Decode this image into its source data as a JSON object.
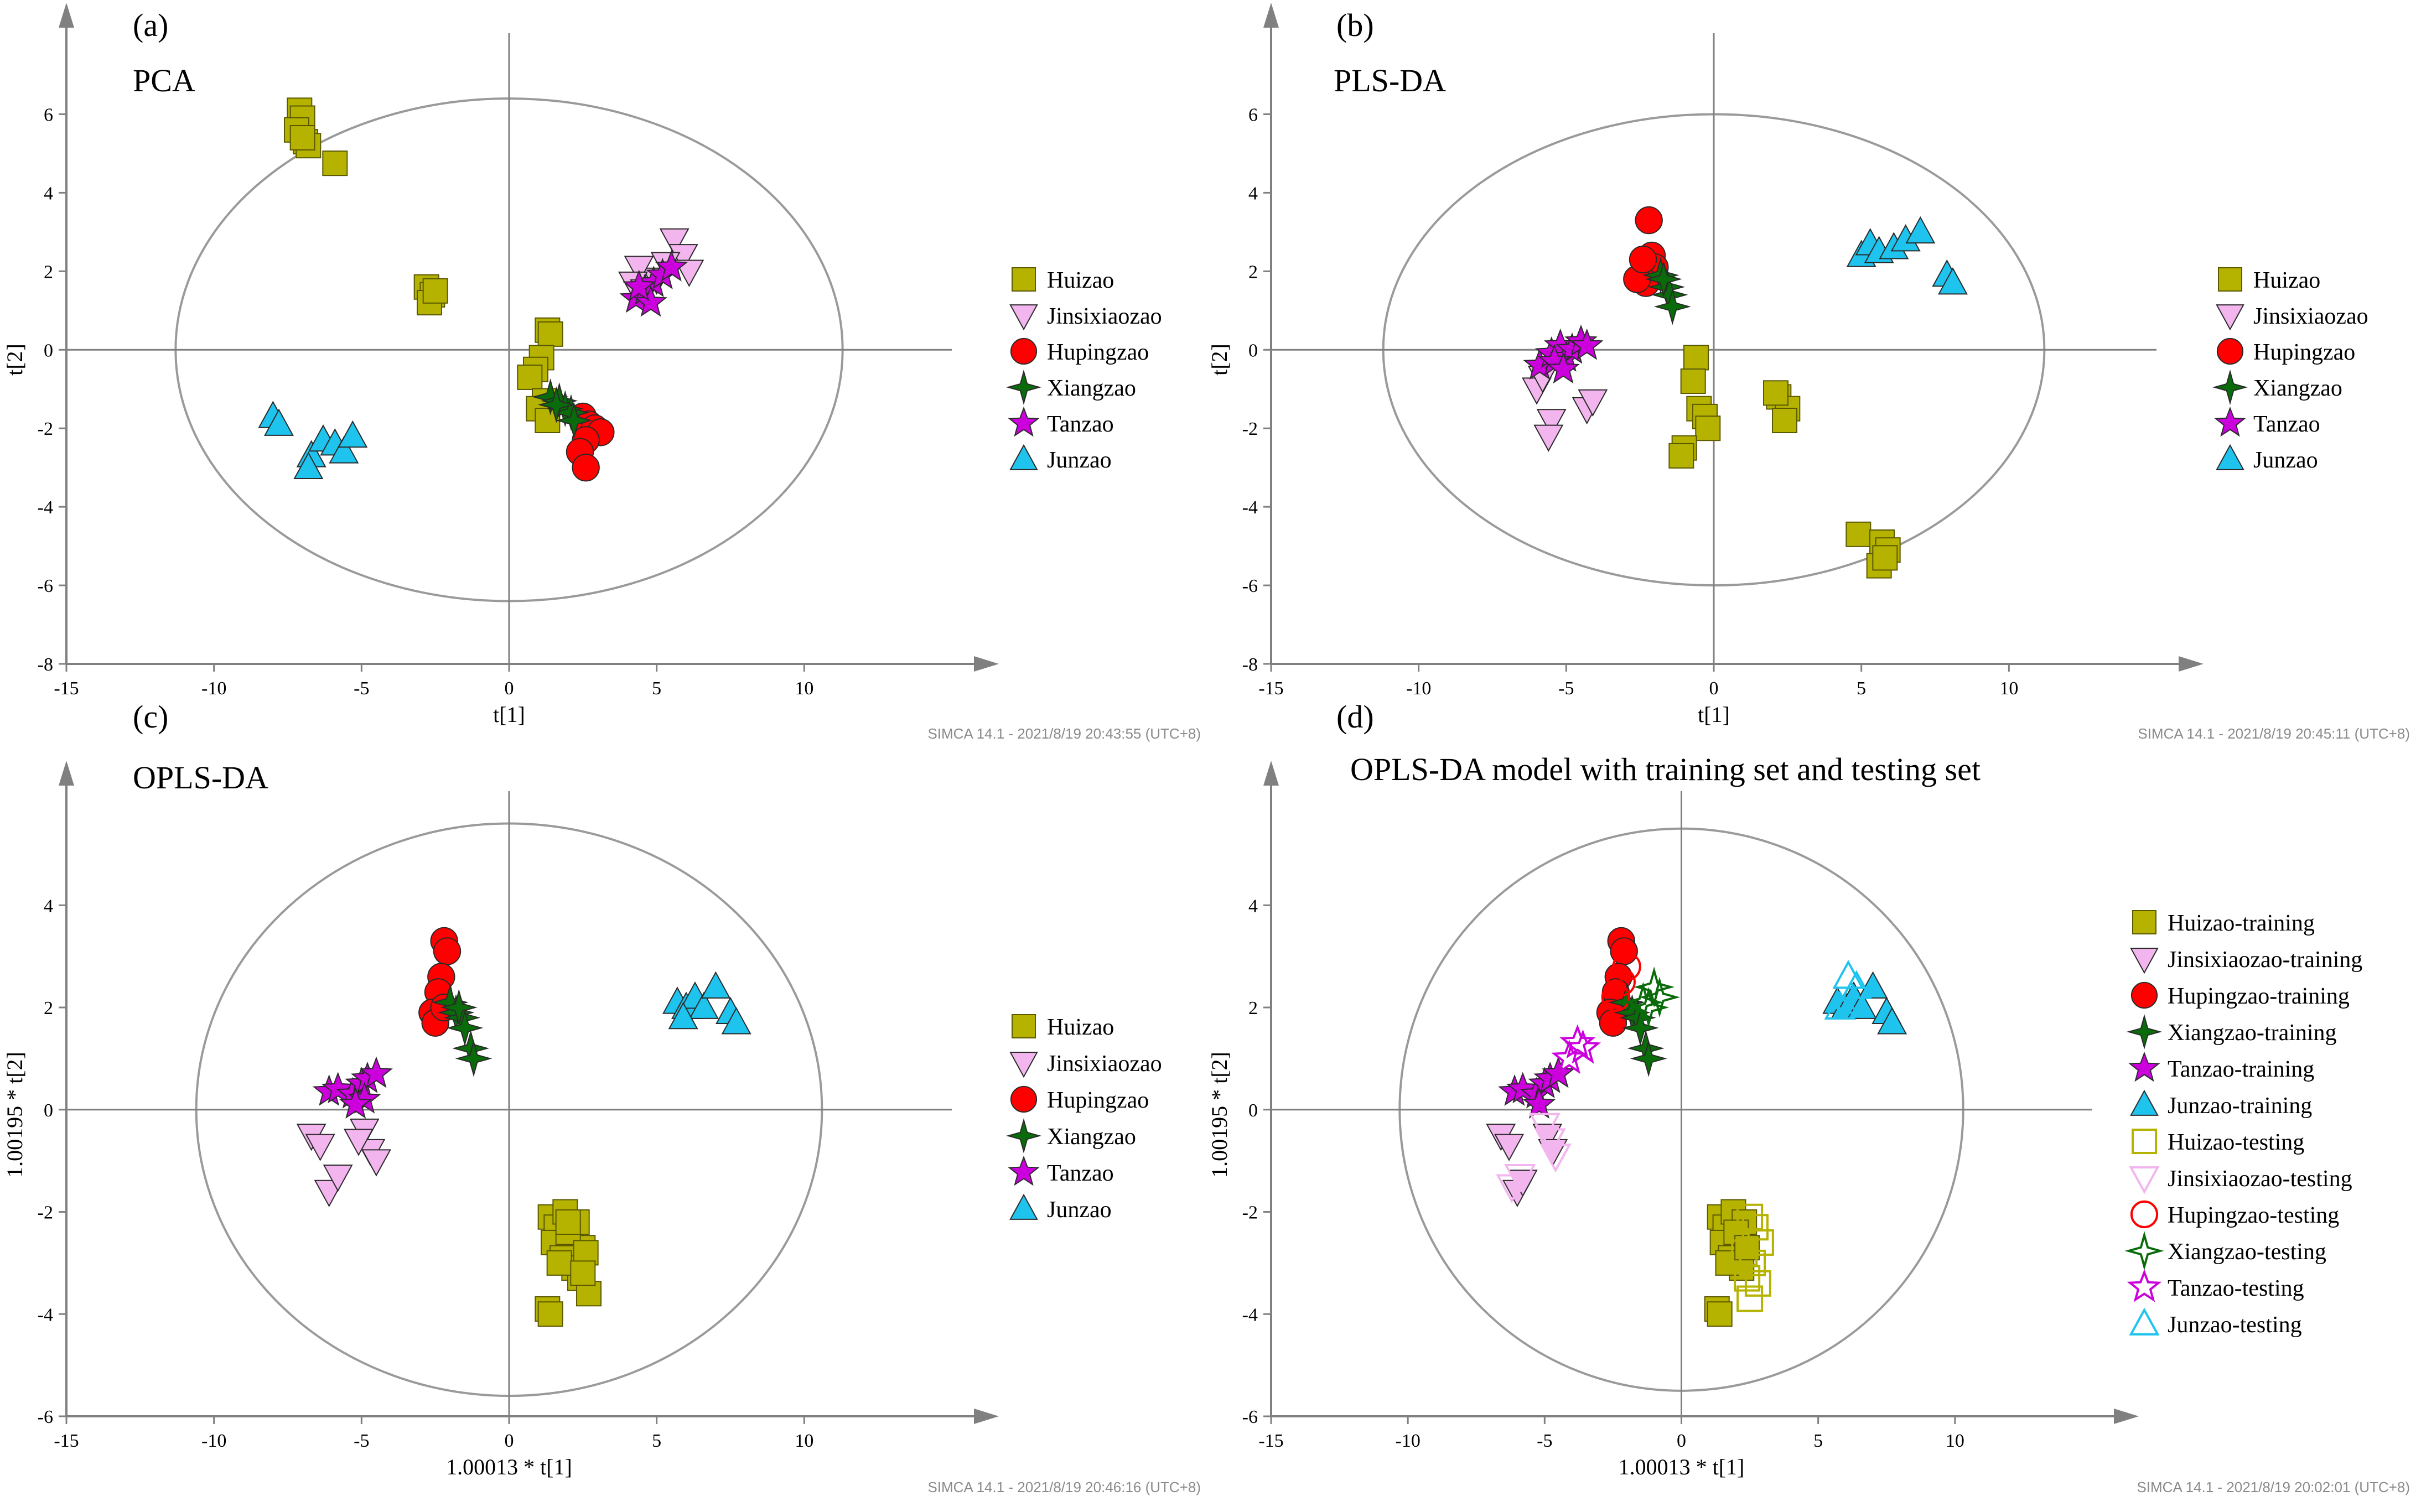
{
  "colors": {
    "Huizao": "#b5b300",
    "Jinsixiaozao": "#f3b5ee",
    "Hupingzao": "#ff0000",
    "Xiangzao": "#0a6b0a",
    "Tanzao": "#cc00dd",
    "Junzao": "#1ec3ee",
    "axis": "#808080",
    "ellipse": "#9a9a9a"
  },
  "chart_data": [
    {
      "type": "scatter",
      "panel_label": "(a)",
      "title": "PCA",
      "xlabel": "t[1]",
      "ylabel": "t[2]",
      "xlim": [
        -15,
        15
      ],
      "ylim": [
        -8,
        7.5
      ],
      "xticks": [
        -15,
        -10,
        -5,
        0,
        5,
        10
      ],
      "yticks": [
        -8,
        -6,
        -4,
        -2,
        0,
        2,
        4,
        6
      ],
      "ellipse": {
        "rx": 11.3,
        "ry": 6.4
      },
      "legend": [
        "Huizao",
        "Jinsixiaozao",
        "Hupingzao",
        "Xiangzao",
        "Tanzao",
        "Junzao"
      ],
      "timestamp": "SIMCA 14.1 - 2021/8/19 20:43:55 (UTC+8)",
      "series": [
        {
          "name": "Huizao",
          "shape": "square",
          "x": [
            -7.1,
            -7.0,
            -7.2,
            -6.9,
            -6.8,
            -7.0,
            -5.9,
            -2.8,
            -2.6,
            -2.7,
            -2.5,
            1.3,
            1.4,
            1.1,
            0.9,
            0.7,
            1.2,
            1.0,
            1.3
          ],
          "y": [
            6.1,
            5.9,
            5.6,
            5.3,
            5.2,
            5.4,
            4.75,
            1.6,
            1.4,
            1.2,
            1.5,
            0.5,
            0.4,
            -0.2,
            -0.5,
            -0.7,
            -1.3,
            -1.5,
            -1.8
          ]
        },
        {
          "name": "Jinsixiaozao",
          "shape": "triangle-down",
          "x": [
            5.6,
            5.9,
            6.1,
            5.0,
            4.4,
            4.2,
            4.6,
            5.3
          ],
          "y": [
            2.8,
            2.4,
            2.0,
            1.8,
            2.1,
            1.7,
            1.5,
            2.2
          ]
        },
        {
          "name": "Hupingzao",
          "shape": "circle",
          "x": [
            2.5,
            2.7,
            2.9,
            3.1,
            2.6,
            2.4,
            2.6
          ],
          "y": [
            -1.7,
            -1.9,
            -2.0,
            -2.1,
            -2.3,
            -2.6,
            -3.0
          ]
        },
        {
          "name": "Xiangzao",
          "shape": "star4",
          "x": [
            1.4,
            1.7,
            1.9,
            2.1,
            2.2,
            1.6
          ],
          "y": [
            -1.2,
            -1.3,
            -1.5,
            -1.6,
            -1.8,
            -1.4
          ]
        },
        {
          "name": "Tanzao",
          "shape": "star5",
          "x": [
            4.3,
            4.6,
            4.9,
            5.2,
            5.5,
            4.8,
            4.4
          ],
          "y": [
            1.3,
            1.5,
            1.7,
            1.9,
            2.1,
            1.2,
            1.6
          ]
        },
        {
          "name": "Junzao",
          "shape": "triangle-up",
          "x": [
            -8.0,
            -7.8,
            -6.7,
            -6.3,
            -5.9,
            -5.6,
            -5.3,
            -6.8
          ],
          "y": [
            -1.7,
            -1.9,
            -2.7,
            -2.3,
            -2.4,
            -2.6,
            -2.2,
            -3.0
          ]
        }
      ]
    },
    {
      "type": "scatter",
      "panel_label": "(b)",
      "title": "PLS-DA",
      "xlabel": "t[1]",
      "ylabel": "t[2]",
      "xlim": [
        -15,
        15
      ],
      "ylim": [
        -8,
        7.5
      ],
      "xticks": [
        -15,
        -10,
        -5,
        0,
        5,
        10
      ],
      "yticks": [
        -8,
        -6,
        -4,
        -2,
        0,
        2,
        4,
        6
      ],
      "ellipse": {
        "rx": 11.2,
        "ry": 6.0
      },
      "legend": [
        "Huizao",
        "Jinsixiaozao",
        "Hupingzao",
        "Xiangzao",
        "Tanzao",
        "Junzao"
      ],
      "timestamp": "SIMCA 14.1 - 2021/8/19 20:45:11 (UTC+8)",
      "series": [
        {
          "name": "Huizao",
          "shape": "square",
          "x": [
            -0.6,
            -0.7,
            -0.5,
            -0.3,
            -0.2,
            -1.0,
            -1.1,
            2.2,
            2.5,
            2.4,
            2.1,
            4.9,
            5.7,
            5.9,
            5.6,
            5.8
          ],
          "y": [
            -0.2,
            -0.8,
            -1.5,
            -1.7,
            -2.0,
            -2.5,
            -2.7,
            -1.2,
            -1.5,
            -1.8,
            -1.1,
            -4.7,
            -4.9,
            -5.1,
            -5.5,
            -5.3
          ]
        },
        {
          "name": "Jinsixiaozao",
          "shape": "triangle-down",
          "x": [
            -6.0,
            -5.8,
            -5.5,
            -5.6,
            -4.3,
            -4.1
          ],
          "y": [
            -1.0,
            -0.7,
            -1.8,
            -2.2,
            -1.5,
            -1.3
          ]
        },
        {
          "name": "Hupingzao",
          "shape": "circle",
          "x": [
            -2.2,
            -2.1,
            -2.0,
            -2.3,
            -2.6,
            -2.4
          ],
          "y": [
            3.3,
            2.4,
            2.1,
            1.7,
            1.8,
            2.3
          ]
        },
        {
          "name": "Xiangzao",
          "shape": "star4",
          "x": [
            -1.8,
            -1.6,
            -1.5,
            -1.4,
            -1.7
          ],
          "y": [
            1.9,
            1.6,
            1.4,
            1.1,
            1.8
          ]
        },
        {
          "name": "Tanzao",
          "shape": "star5",
          "x": [
            -5.9,
            -5.5,
            -5.2,
            -5.0,
            -4.8,
            -4.5,
            -4.3,
            -5.4,
            -5.1
          ],
          "y": [
            -0.4,
            -0.1,
            0.1,
            -0.2,
            0.0,
            0.2,
            0.1,
            -0.3,
            -0.5
          ]
        },
        {
          "name": "Junzao",
          "shape": "triangle-up",
          "x": [
            5.0,
            5.3,
            5.6,
            6.1,
            6.5,
            7.0,
            7.9,
            8.1
          ],
          "y": [
            2.4,
            2.7,
            2.5,
            2.6,
            2.8,
            3.0,
            1.9,
            1.7
          ]
        }
      ]
    },
    {
      "type": "scatter",
      "panel_label": "(c)",
      "title": "OPLS-DA",
      "xlabel": "1.00013 * t[1]",
      "ylabel": "1.00195 * t[2]",
      "xlim": [
        -15,
        15
      ],
      "ylim": [
        -6,
        5.8
      ],
      "xticks": [
        -15,
        -10,
        -5,
        0,
        5,
        10
      ],
      "yticks": [
        -6,
        -4,
        -2,
        0,
        2,
        4
      ],
      "ellipse": {
        "rx": 10.6,
        "ry": 5.6
      },
      "legend": [
        "Huizao",
        "Jinsixiaozao",
        "Hupingzao",
        "Xiangzao",
        "Tanzao",
        "Junzao"
      ],
      "timestamp": "SIMCA 14.1 - 2021/8/19 20:46:16 (UTC+8)",
      "series": [
        {
          "name": "Huizao",
          "shape": "square",
          "x": [
            1.4,
            1.6,
            1.9,
            2.1,
            2.3,
            2.5,
            1.5,
            1.8,
            2.0,
            2.2,
            2.4,
            2.6,
            1.7,
            2.7,
            1.3,
            1.4,
            2.0,
            2.5
          ],
          "y": [
            -2.1,
            -2.3,
            -2.0,
            -2.5,
            -2.2,
            -2.7,
            -2.6,
            -2.9,
            -2.4,
            -3.1,
            -3.3,
            -2.8,
            -3.0,
            -3.6,
            -3.9,
            -4.0,
            -2.2,
            -3.2
          ]
        },
        {
          "name": "Jinsixiaozao",
          "shape": "triangle-down",
          "x": [
            -6.7,
            -6.4,
            -6.1,
            -5.8,
            -4.9,
            -4.7,
            -4.5,
            -5.1
          ],
          "y": [
            -0.5,
            -0.7,
            -1.6,
            -1.3,
            -0.4,
            -0.8,
            -1.0,
            -0.6
          ]
        },
        {
          "name": "Hupingzao",
          "shape": "circle",
          "x": [
            -2.2,
            -2.1,
            -2.3,
            -2.4,
            -2.6,
            -2.5,
            -2.2
          ],
          "y": [
            3.3,
            3.1,
            2.6,
            2.3,
            1.9,
            1.7,
            2.0
          ]
        },
        {
          "name": "Xiangzao",
          "shape": "star4",
          "x": [
            -2.0,
            -1.8,
            -1.6,
            -1.5,
            -1.3,
            -1.2,
            -1.7
          ],
          "y": [
            2.1,
            1.9,
            1.8,
            1.6,
            1.2,
            1.0,
            2.0
          ]
        },
        {
          "name": "Tanzao",
          "shape": "star5",
          "x": [
            -6.1,
            -5.8,
            -5.3,
            -5.0,
            -4.8,
            -4.5,
            -4.9,
            -5.2
          ],
          "y": [
            0.35,
            0.4,
            0.3,
            0.5,
            0.6,
            0.7,
            0.2,
            0.1
          ]
        },
        {
          "name": "Junzao",
          "shape": "triangle-up",
          "x": [
            5.7,
            6.0,
            6.3,
            6.6,
            7.0,
            7.5,
            7.7,
            5.9
          ],
          "y": [
            2.1,
            2.0,
            2.2,
            2.0,
            2.4,
            1.9,
            1.7,
            1.8
          ]
        }
      ]
    },
    {
      "type": "scatter",
      "panel_label": "(d)",
      "title": "OPLS-DA model with training set and  testing set",
      "xlabel": "1.00013 * t[1]",
      "ylabel": "1.00195 * t[2]",
      "xlim": [
        -15,
        15
      ],
      "ylim": [
        -6,
        5.8
      ],
      "xticks": [
        -15,
        -10,
        -5,
        0,
        5,
        10
      ],
      "yticks": [
        -6,
        -4,
        -2,
        0,
        2,
        4
      ],
      "ellipse": {
        "rx": 10.3,
        "ry": 5.5
      },
      "legend": [
        "Huizao-training",
        "Jinsixiaozao-training",
        "Hupingzao-training",
        "Xiangzao-training",
        "Tanzao-training",
        "Junzao-training",
        "Huizao-testing",
        "Jinsixiaozao-testing",
        "Hupingzao-testing",
        "Xiangzao-testing",
        "Tanzao-testing",
        "Junzao-testing"
      ],
      "timestamp": "SIMCA 14.1 - 2021/8/19 20:02:01 (UTC+8)",
      "series": [
        {
          "name": "Huizao-training",
          "shape": "square",
          "x": [
            1.4,
            1.6,
            1.9,
            2.1,
            2.3,
            1.5,
            1.8,
            2.0,
            2.2,
            1.7,
            1.3,
            1.4,
            2.4
          ],
          "y": [
            -2.1,
            -2.3,
            -2.0,
            -2.5,
            -2.2,
            -2.6,
            -2.9,
            -2.4,
            -3.1,
            -3.0,
            -3.9,
            -4.0,
            -2.7
          ]
        },
        {
          "name": "Jinsixiaozao-training",
          "shape": "triangle-down",
          "x": [
            -6.6,
            -6.3,
            -6.0,
            -5.8,
            -4.9,
            -4.7
          ],
          "y": [
            -0.5,
            -0.7,
            -1.6,
            -1.4,
            -0.5,
            -0.8
          ]
        },
        {
          "name": "Hupingzao-training",
          "shape": "circle",
          "x": [
            -2.2,
            -2.1,
            -2.3,
            -2.4,
            -2.6,
            -2.5
          ],
          "y": [
            3.3,
            3.1,
            2.6,
            2.3,
            1.9,
            1.7
          ]
        },
        {
          "name": "Xiangzao-training",
          "shape": "star4",
          "x": [
            -2.0,
            -1.8,
            -1.6,
            -1.5,
            -1.3,
            -1.2
          ],
          "y": [
            2.1,
            1.9,
            1.8,
            1.6,
            1.2,
            1.0
          ]
        },
        {
          "name": "Tanzao-training",
          "shape": "star5",
          "x": [
            -6.1,
            -5.8,
            -5.3,
            -5.0,
            -4.8,
            -4.5,
            -5.2
          ],
          "y": [
            0.35,
            0.4,
            0.3,
            0.5,
            0.6,
            0.7,
            0.1
          ]
        },
        {
          "name": "Junzao-training",
          "shape": "triangle-up",
          "x": [
            5.7,
            6.0,
            6.3,
            6.6,
            7.0,
            7.5,
            7.7
          ],
          "y": [
            2.1,
            2.0,
            2.2,
            2.0,
            2.4,
            1.9,
            1.7
          ]
        },
        {
          "name": "Huizao-testing",
          "shape": "square-open",
          "x": [
            2.5,
            2.7,
            2.9,
            2.6,
            2.4,
            2.8,
            2.5,
            2.3
          ],
          "y": [
            -2.1,
            -2.3,
            -2.6,
            -3.0,
            -3.3,
            -3.4,
            -3.7,
            -2.8
          ]
        },
        {
          "name": "Jinsixiaozao-testing",
          "shape": "triangle-down-open",
          "x": [
            -6.2,
            -5.9,
            -5.0,
            -4.6,
            -4.8
          ],
          "y": [
            -1.5,
            -1.3,
            -0.3,
            -0.9,
            -0.6
          ]
        },
        {
          "name": "Hupingzao-testing",
          "shape": "circle-open",
          "x": [
            -2.0,
            -2.2,
            -2.4
          ],
          "y": [
            2.8,
            2.5,
            2.2
          ]
        },
        {
          "name": "Xiangzao-testing",
          "shape": "star4-open",
          "x": [
            -1.0,
            -0.8,
            -1.4,
            -1.2
          ],
          "y": [
            2.4,
            2.2,
            2.1,
            2.0
          ]
        },
        {
          "name": "Tanzao-testing",
          "shape": "star5-open",
          "x": [
            -3.8,
            -3.6,
            -4.1
          ],
          "y": [
            1.3,
            1.2,
            1.0
          ]
        },
        {
          "name": "Junzao-testing",
          "shape": "triangle-up-open",
          "x": [
            6.1,
            6.4,
            6.2,
            5.8
          ],
          "y": [
            2.6,
            2.4,
            2.2,
            2.0
          ]
        }
      ]
    }
  ]
}
